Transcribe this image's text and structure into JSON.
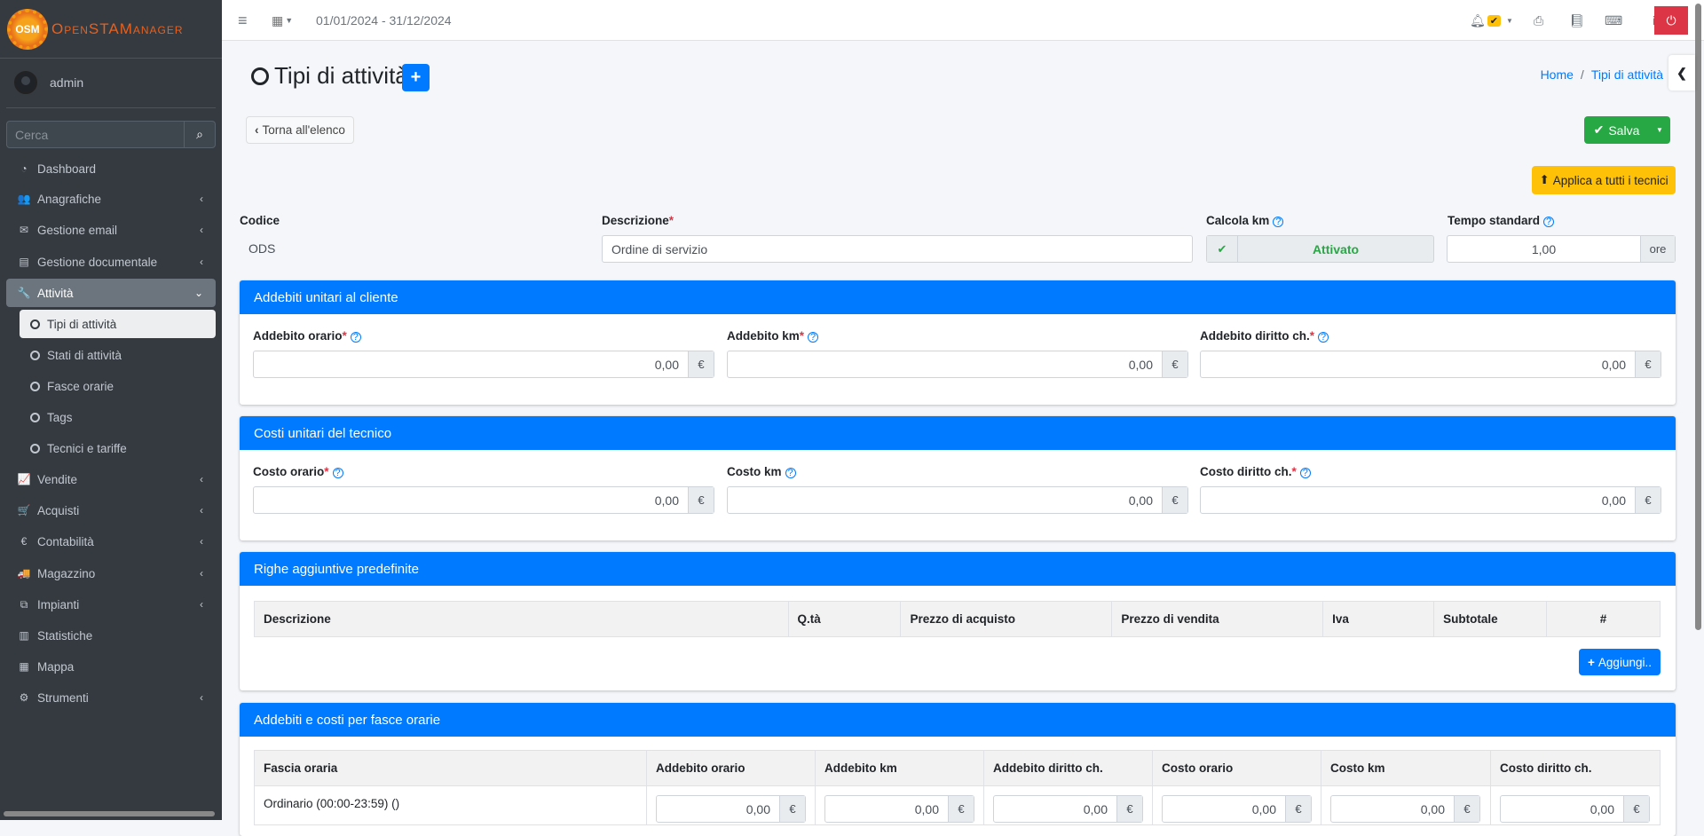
{
  "app": {
    "brand": "OpenSTAManager",
    "logo_text": "OSM"
  },
  "user": {
    "name": "admin"
  },
  "search": {
    "placeholder": "Cerca"
  },
  "sidebar": {
    "items": [
      {
        "label": "Dashboard",
        "icon": "dashboard-icon",
        "glyph": "◔",
        "chevron": false
      },
      {
        "label": "Anagrafiche",
        "icon": "users-icon",
        "glyph": "👥",
        "chevron": true
      },
      {
        "label": "Gestione email",
        "icon": "envelope-icon",
        "glyph": "✉",
        "chevron": true
      },
      {
        "label": "Gestione documentale",
        "icon": "file-icon",
        "glyph": "▤",
        "chevron": true
      },
      {
        "label": "Attività",
        "icon": "wrench-icon",
        "glyph": "🔧",
        "chevron": true,
        "active": true
      },
      {
        "label": "Tipi di attività",
        "sub": true,
        "current": true
      },
      {
        "label": "Stati di attività",
        "sub": true
      },
      {
        "label": "Fasce orarie",
        "sub": true
      },
      {
        "label": "Tags",
        "sub": true
      },
      {
        "label": "Tecnici e tariffe",
        "sub": true
      },
      {
        "label": "Vendite",
        "icon": "line-chart-icon",
        "glyph": "📈",
        "chevron": true
      },
      {
        "label": "Acquisti",
        "icon": "cart-icon",
        "glyph": "🛒",
        "chevron": true
      },
      {
        "label": "Contabilità",
        "icon": "euro-icon",
        "glyph": "€",
        "chevron": true
      },
      {
        "label": "Magazzino",
        "icon": "truck-icon",
        "glyph": "🚚",
        "chevron": true
      },
      {
        "label": "Impianti",
        "icon": "puzzle-icon",
        "glyph": "⧉",
        "chevron": true
      },
      {
        "label": "Statistiche",
        "icon": "bar-chart-icon",
        "glyph": "▥",
        "chevron": false
      },
      {
        "label": "Mappa",
        "icon": "map-icon",
        "glyph": "▦",
        "chevron": false
      },
      {
        "label": "Strumenti",
        "icon": "cog-icon",
        "glyph": "⚙",
        "chevron": true
      }
    ]
  },
  "topbar": {
    "date_range": "01/01/2024 - 31/12/2024"
  },
  "page": {
    "title": "Tipi di attività",
    "breadcrumb": [
      "Home",
      "Tipi di attività"
    ],
    "back_label": "Torna all'elenco",
    "save_label": "Salva",
    "apply_label": "Applica a tutti i tecnici"
  },
  "fields": {
    "codice": {
      "label": "Codice",
      "value": "ODS"
    },
    "descrizione": {
      "label": "Descrizione",
      "value": "Ordine di servizio"
    },
    "calcola_km": {
      "label": "Calcola km",
      "value": "Attivato"
    },
    "tempo_standard": {
      "label": "Tempo standard",
      "value": "1,00",
      "unit": "ore"
    }
  },
  "cards": {
    "addebiti": {
      "title": "Addebiti unitari al cliente",
      "fields": [
        {
          "label": "Addebito orario",
          "req": true,
          "value": "0,00"
        },
        {
          "label": "Addebito km",
          "req": true,
          "value": "0,00"
        },
        {
          "label": "Addebito diritto ch.",
          "req": true,
          "value": "0,00"
        }
      ]
    },
    "costi": {
      "title": "Costi unitari del tecnico",
      "fields": [
        {
          "label": "Costo orario",
          "req": true,
          "value": "0,00"
        },
        {
          "label": "Costo km",
          "req": false,
          "value": "0,00"
        },
        {
          "label": "Costo diritto ch.",
          "req": true,
          "value": "0,00"
        }
      ]
    },
    "righe": {
      "title": "Righe aggiuntive predefinite",
      "columns": [
        "Descrizione",
        "Q.tà",
        "Prezzo di acquisto",
        "Prezzo di vendita",
        "Iva",
        "Subtotale",
        "#"
      ],
      "add_label": "Aggiungi.."
    },
    "fasce": {
      "title": "Addebiti e costi per fasce orarie",
      "columns": [
        "Fascia oraria",
        "Addebito orario",
        "Addebito km",
        "Addebito diritto ch.",
        "Costo orario",
        "Costo km",
        "Costo diritto ch."
      ],
      "rows": [
        {
          "name": "Ordinario (00:00-23:59) ()",
          "values": [
            "0,00",
            "0,00",
            "0,00",
            "0,00",
            "0,00",
            "0,00"
          ]
        }
      ]
    }
  },
  "currency": "€",
  "colors": {
    "primary": "#007bff",
    "success": "#28a745",
    "warning": "#ffc107",
    "danger": "#dc3545",
    "sidebar": "#343a40"
  }
}
